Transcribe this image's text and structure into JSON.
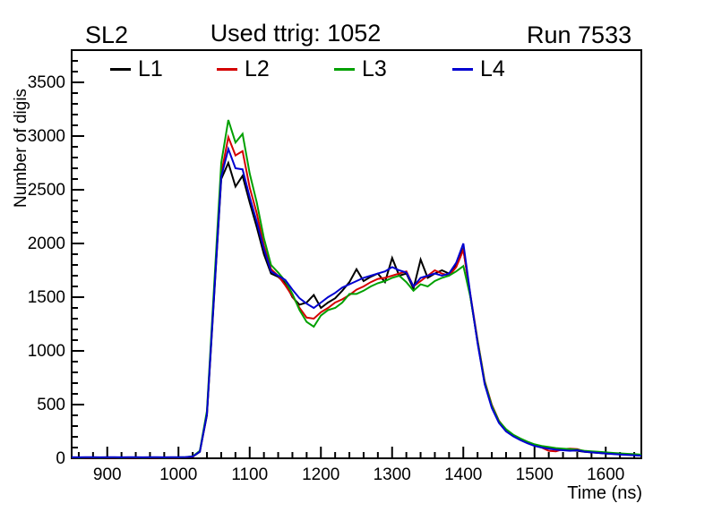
{
  "header": {
    "left": "SL2",
    "center": "Used ttrig: 1052",
    "right": "Run 7533"
  },
  "chart_data": {
    "type": "line",
    "title": "Used ttrig: 1052",
    "subtitle_left": "SL2",
    "subtitle_right": "Run 7533",
    "xlabel": "Time (ns)",
    "ylabel": "Number of digis",
    "xlim": [
      850,
      1650
    ],
    "ylim": [
      0,
      3800
    ],
    "x_ticks_major": [
      900,
      1000,
      1100,
      1200,
      1300,
      1400,
      1500,
      1600
    ],
    "x_minor_step": 20,
    "y_ticks_major": [
      0,
      500,
      1000,
      1500,
      2000,
      2500,
      3000,
      3500
    ],
    "y_minor_step": 100,
    "grid": false,
    "legend_position": "top-inside",
    "frame_color": "#000000",
    "x_start": 850,
    "x_step": 10,
    "series": [
      {
        "name": "L1",
        "color": "#000000",
        "values": [
          5,
          6,
          5,
          5,
          6,
          5,
          6,
          5,
          5,
          6,
          5,
          6,
          5,
          5,
          6,
          5,
          8,
          15,
          60,
          400,
          1500,
          2600,
          2750,
          2530,
          2630,
          2380,
          2150,
          1900,
          1720,
          1690,
          1630,
          1500,
          1430,
          1450,
          1520,
          1400,
          1450,
          1490,
          1560,
          1640,
          1760,
          1650,
          1690,
          1720,
          1640,
          1865,
          1700,
          1720,
          1580,
          1850,
          1680,
          1720,
          1750,
          1720,
          1800,
          1950,
          1500,
          1080,
          700,
          480,
          340,
          260,
          210,
          175,
          145,
          120,
          105,
          95,
          85,
          80,
          75,
          70,
          60,
          55,
          50,
          45,
          42,
          38,
          34,
          30,
          26
        ]
      },
      {
        "name": "L2",
        "color": "#d40000",
        "values": [
          7,
          6,
          7,
          6,
          7,
          7,
          6,
          7,
          6,
          7,
          6,
          7,
          7,
          6,
          7,
          6,
          9,
          16,
          65,
          420,
          1550,
          2650,
          2990,
          2820,
          2860,
          2520,
          2280,
          1980,
          1760,
          1700,
          1610,
          1510,
          1400,
          1310,
          1300,
          1360,
          1400,
          1450,
          1480,
          1520,
          1570,
          1600,
          1640,
          1670,
          1680,
          1700,
          1720,
          1740,
          1600,
          1650,
          1700,
          1750,
          1720,
          1700,
          1780,
          1940,
          1520,
          1100,
          720,
          500,
          350,
          265,
          215,
          180,
          150,
          125,
          100,
          70,
          65,
          85,
          90,
          85,
          65,
          58,
          52,
          48,
          44,
          40,
          36,
          32,
          28
        ]
      },
      {
        "name": "L3",
        "color": "#00a000",
        "values": [
          8,
          7,
          8,
          8,
          7,
          8,
          8,
          7,
          8,
          8,
          7,
          8,
          8,
          7,
          8,
          8,
          10,
          18,
          70,
          440,
          1600,
          2750,
          3150,
          2940,
          3020,
          2650,
          2380,
          2050,
          1800,
          1730,
          1650,
          1530,
          1380,
          1270,
          1225,
          1330,
          1380,
          1400,
          1450,
          1530,
          1530,
          1560,
          1600,
          1630,
          1650,
          1680,
          1700,
          1640,
          1560,
          1620,
          1600,
          1650,
          1680,
          1700,
          1740,
          1790,
          1500,
          1090,
          710,
          490,
          345,
          270,
          220,
          185,
          155,
          130,
          115,
          105,
          95,
          90,
          85,
          80,
          70,
          65,
          60,
          55,
          50,
          46,
          42,
          38,
          34
        ]
      },
      {
        "name": "L4",
        "color": "#0000d0",
        "values": [
          10,
          9,
          10,
          10,
          9,
          10,
          10,
          9,
          10,
          10,
          9,
          10,
          10,
          9,
          10,
          10,
          12,
          17,
          62,
          410,
          1520,
          2620,
          2880,
          2700,
          2690,
          2430,
          2200,
          1950,
          1740,
          1700,
          1660,
          1570,
          1490,
          1440,
          1400,
          1450,
          1500,
          1540,
          1590,
          1620,
          1650,
          1680,
          1700,
          1720,
          1740,
          1780,
          1750,
          1730,
          1600,
          1680,
          1700,
          1720,
          1700,
          1720,
          1820,
          2000,
          1520,
          1070,
          690,
          470,
          330,
          250,
          205,
          170,
          140,
          115,
          100,
          90,
          80,
          75,
          70,
          75,
          62,
          55,
          50,
          45,
          40,
          36,
          32,
          28,
          24
        ]
      }
    ]
  }
}
